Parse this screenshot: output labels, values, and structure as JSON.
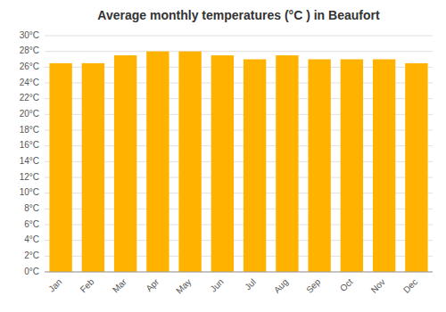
{
  "chart_data": {
    "type": "bar",
    "title": "Average monthly temperatures (°C ) in Beaufort",
    "categories": [
      "Jan",
      "Feb",
      "Mar",
      "Apr",
      "May",
      "Jun",
      "Jul",
      "Aug",
      "Sep",
      "Oct",
      "Nov",
      "Dec"
    ],
    "values": [
      26.5,
      26.5,
      27.5,
      28.0,
      28.0,
      27.5,
      27.0,
      27.5,
      27.0,
      27.0,
      27.0,
      26.5
    ],
    "color": "#FFB300",
    "ylim": [
      0,
      30
    ],
    "yticks": [
      {
        "value": 0,
        "label": "0°C"
      },
      {
        "value": 2,
        "label": "2°C"
      },
      {
        "value": 4,
        "label": "4°C"
      },
      {
        "value": 6,
        "label": "6°C"
      },
      {
        "value": 8,
        "label": "8°C"
      },
      {
        "value": 10,
        "label": "10°C"
      },
      {
        "value": 12,
        "label": "12°C"
      },
      {
        "value": 14,
        "label": "14°C"
      },
      {
        "value": 16,
        "label": "16°C"
      },
      {
        "value": 18,
        "label": "18°C"
      },
      {
        "value": 20,
        "label": "20°C"
      },
      {
        "value": 22,
        "label": "22°C"
      },
      {
        "value": 24,
        "label": "24°C"
      },
      {
        "value": 26,
        "label": "26°C"
      },
      {
        "value": 28,
        "label": "28°C"
      },
      {
        "value": 30,
        "label": "30°C"
      }
    ],
    "grid": true
  }
}
